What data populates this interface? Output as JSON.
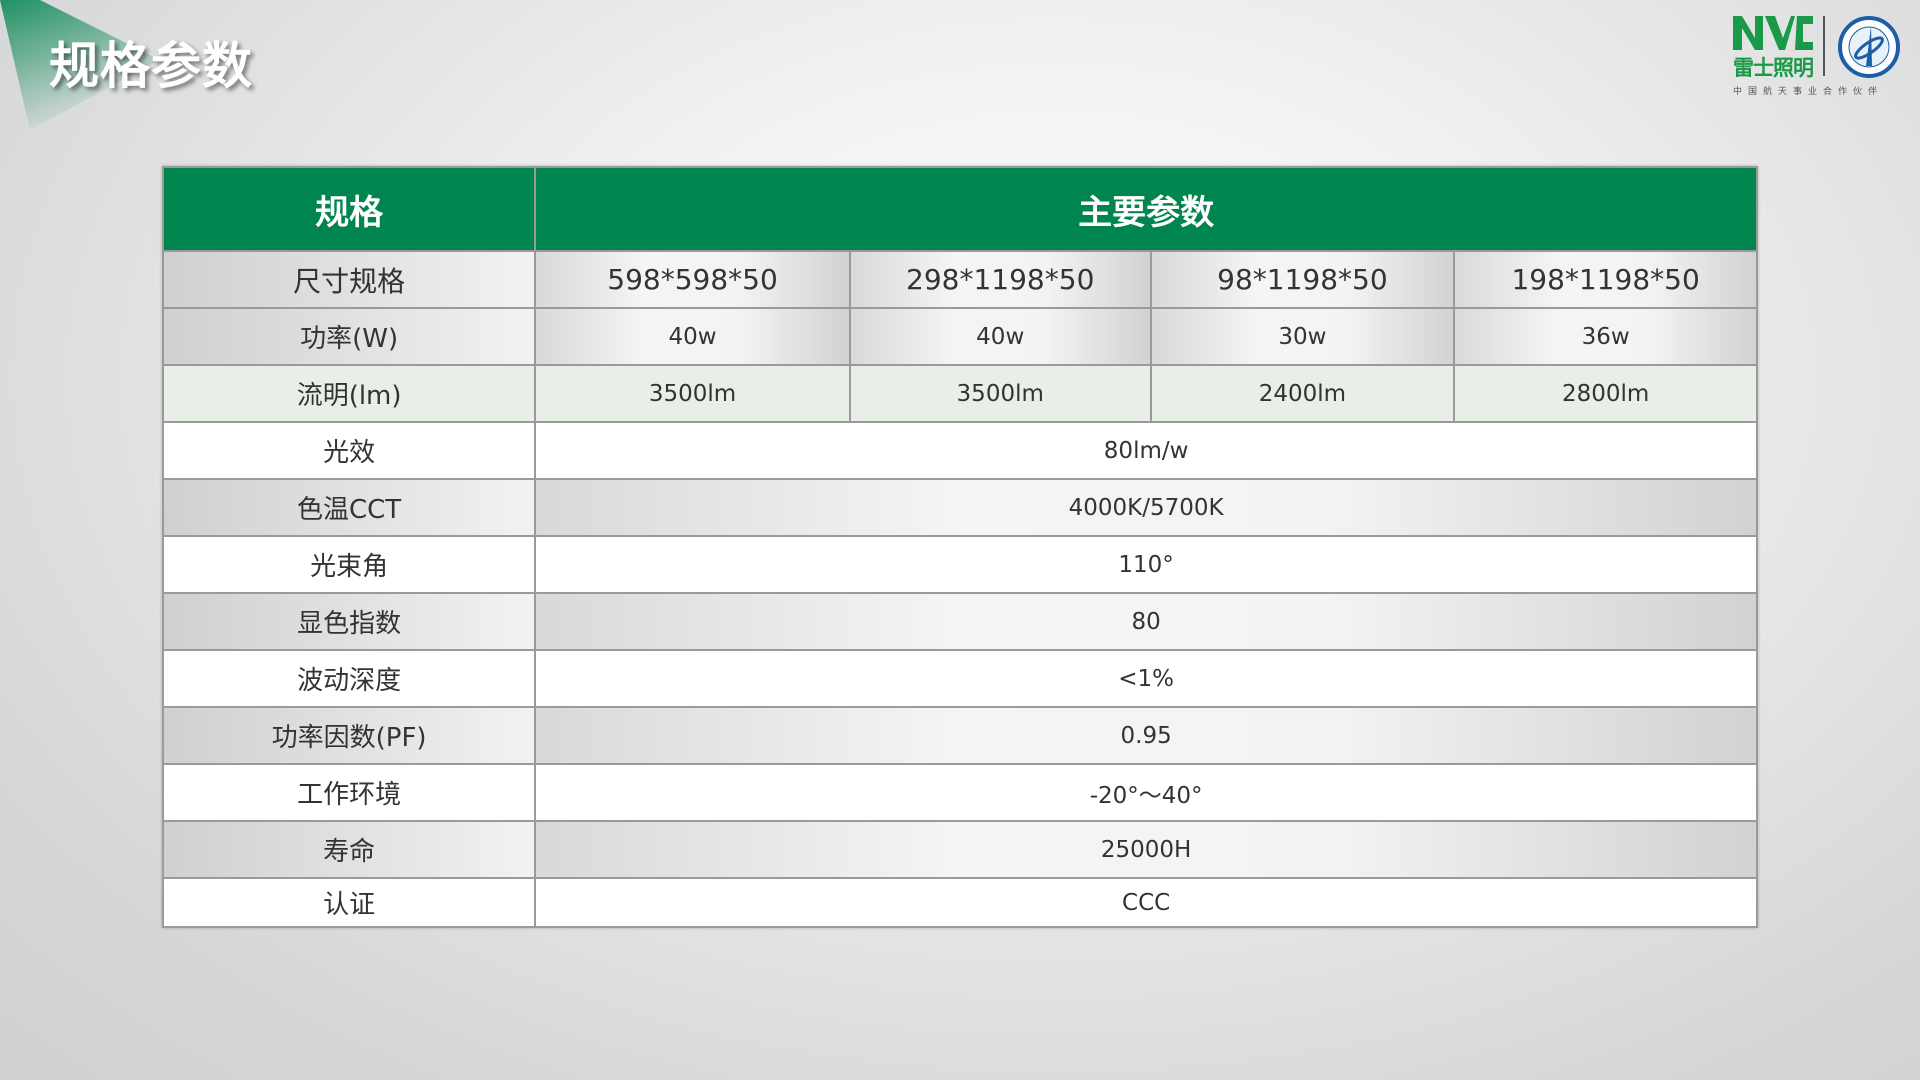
{
  "page_title": "规格参数",
  "brand": {
    "logo_text": "NVC",
    "name": "雷士照明",
    "slogan": "中国航天事业合作伙伴",
    "color": "#1a9a48"
  },
  "table": {
    "header": {
      "col1": "规格",
      "col2": "主要参数",
      "color": "#00854f"
    },
    "rows": [
      {
        "label": "尺寸规格",
        "values": [
          "598*598*50",
          "298*1198*50",
          "98*1198*50",
          "198*1198*50"
        ]
      },
      {
        "label": "功率(W)",
        "values": [
          "40w",
          "40w",
          "30w",
          "36w"
        ]
      },
      {
        "label": "流明(lm)",
        "values": [
          "3500lm",
          "3500lm",
          "2400lm",
          "2800lm"
        ]
      },
      {
        "label": "光效",
        "value": "80lm/w"
      },
      {
        "label": "色温CCT",
        "value": "4000K/5700K"
      },
      {
        "label": "光束角",
        "value": "110°"
      },
      {
        "label": "显色指数",
        "value": "80"
      },
      {
        "label": "波动深度",
        "value": "<1%"
      },
      {
        "label": "功率因数(PF)",
        "value": "0.95"
      },
      {
        "label": "工作环境",
        "value": "-20°～40°"
      },
      {
        "label": "寿命",
        "value": "25000H"
      },
      {
        "label": "认证",
        "value": "CCC"
      }
    ]
  }
}
